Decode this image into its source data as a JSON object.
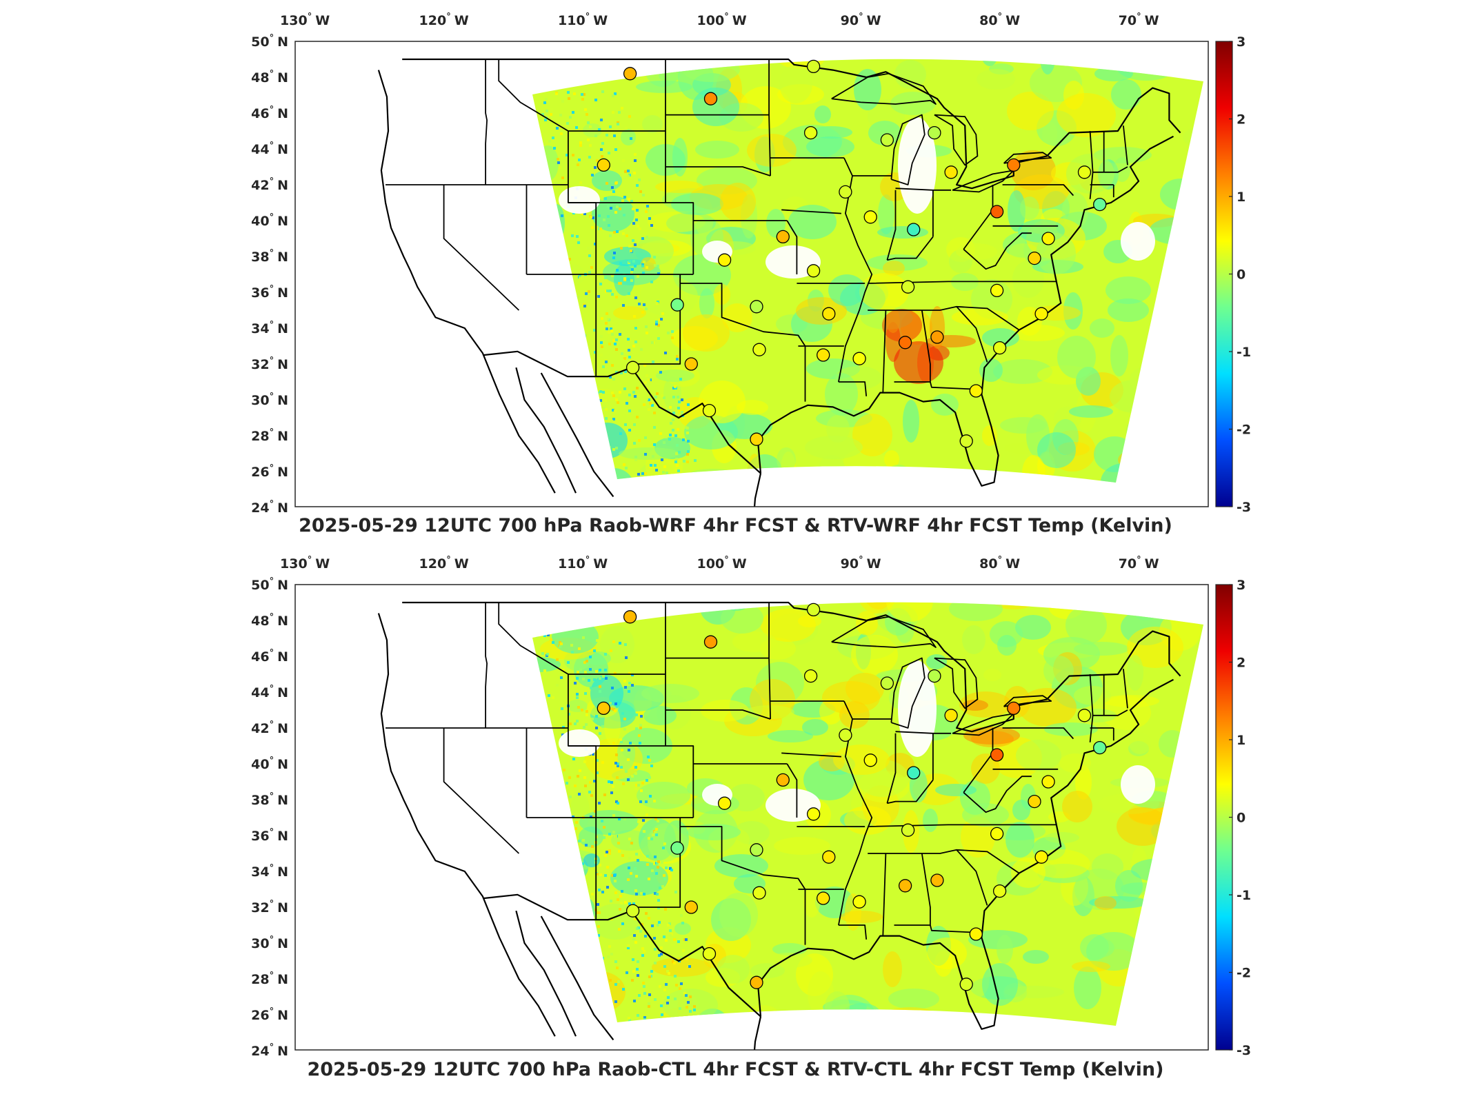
{
  "colors": {
    "colormap": [
      "#00008f",
      "#0050ff",
      "#00dfff",
      "#6fff8f",
      "#ffff00",
      "#ff8000",
      "#ef0000",
      "#800000"
    ],
    "frame": "#262626",
    "coastline": "#000000"
  },
  "longitude_ticks": [
    {
      "deg": "130",
      "hemi": "W"
    },
    {
      "deg": "120",
      "hemi": "W"
    },
    {
      "deg": "110",
      "hemi": "W"
    },
    {
      "deg": "100",
      "hemi": "W"
    },
    {
      "deg": "90",
      "hemi": "W"
    },
    {
      "deg": "80",
      "hemi": "W"
    },
    {
      "deg": "70",
      "hemi": "W"
    }
  ],
  "latitude_ticks": [
    {
      "deg": "50",
      "hemi": "N"
    },
    {
      "deg": "48",
      "hemi": "N"
    },
    {
      "deg": "46",
      "hemi": "N"
    },
    {
      "deg": "44",
      "hemi": "N"
    },
    {
      "deg": "42",
      "hemi": "N"
    },
    {
      "deg": "40",
      "hemi": "N"
    },
    {
      "deg": "38",
      "hemi": "N"
    },
    {
      "deg": "36",
      "hemi": "N"
    },
    {
      "deg": "34",
      "hemi": "N"
    },
    {
      "deg": "32",
      "hemi": "N"
    },
    {
      "deg": "30",
      "hemi": "N"
    },
    {
      "deg": "28",
      "hemi": "N"
    },
    {
      "deg": "26",
      "hemi": "N"
    },
    {
      "deg": "24",
      "hemi": "N"
    }
  ],
  "colorbar": {
    "min": -3,
    "max": 3,
    "ticks": [
      "3",
      "2",
      "1",
      "0",
      "-1",
      "-2",
      "-3"
    ]
  },
  "panels": [
    {
      "title": "2025-05-29 12UTC 700 hPa Raob-WRF 4hr FCST & RTV-WRF 4hr FCST Temp (Kelvin)",
      "stations": [
        {
          "lon": -106.6,
          "lat": 48.2,
          "value": 0.9
        },
        {
          "lon": -100.8,
          "lat": 46.8,
          "value": 1.2
        },
        {
          "lon": -93.4,
          "lat": 48.6,
          "value": 0.2
        },
        {
          "lon": -93.6,
          "lat": 44.9,
          "value": 0.3
        },
        {
          "lon": -108.5,
          "lat": 43.1,
          "value": 0.7
        },
        {
          "lon": -88.1,
          "lat": 44.5,
          "value": 0.1
        },
        {
          "lon": -84.7,
          "lat": 44.9,
          "value": 0.0
        },
        {
          "lon": -83.5,
          "lat": 42.7,
          "value": 0.6
        },
        {
          "lon": -79.0,
          "lat": 43.1,
          "value": 1.3
        },
        {
          "lon": -73.9,
          "lat": 42.7,
          "value": 0.3
        },
        {
          "lon": -91.1,
          "lat": 41.6,
          "value": 0.2
        },
        {
          "lon": -89.3,
          "lat": 40.2,
          "value": 0.4
        },
        {
          "lon": -86.2,
          "lat": 39.5,
          "value": -0.8
        },
        {
          "lon": -80.2,
          "lat": 40.5,
          "value": 1.5
        },
        {
          "lon": -72.8,
          "lat": 40.9,
          "value": -0.5
        },
        {
          "lon": -76.5,
          "lat": 39.0,
          "value": 0.5
        },
        {
          "lon": -77.5,
          "lat": 37.9,
          "value": 0.7
        },
        {
          "lon": -95.6,
          "lat": 39.1,
          "value": 0.9
        },
        {
          "lon": -99.8,
          "lat": 37.8,
          "value": 0.5
        },
        {
          "lon": -93.4,
          "lat": 37.2,
          "value": 0.3
        },
        {
          "lon": -86.6,
          "lat": 36.3,
          "value": 0.2
        },
        {
          "lon": -80.2,
          "lat": 36.1,
          "value": 0.4
        },
        {
          "lon": -103.2,
          "lat": 35.3,
          "value": -0.4
        },
        {
          "lon": -97.5,
          "lat": 35.2,
          "value": 0.0
        },
        {
          "lon": -92.3,
          "lat": 34.8,
          "value": 0.6
        },
        {
          "lon": -77.0,
          "lat": 34.8,
          "value": 0.5
        },
        {
          "lon": -86.8,
          "lat": 33.2,
          "value": 1.4
        },
        {
          "lon": -84.5,
          "lat": 33.5,
          "value": 1.1
        },
        {
          "lon": -97.3,
          "lat": 32.8,
          "value": 0.3
        },
        {
          "lon": -92.7,
          "lat": 32.5,
          "value": 0.6
        },
        {
          "lon": -90.1,
          "lat": 32.3,
          "value": 0.4
        },
        {
          "lon": -102.2,
          "lat": 32.0,
          "value": 0.8
        },
        {
          "lon": -106.4,
          "lat": 31.8,
          "value": 0.2
        },
        {
          "lon": -80.0,
          "lat": 32.9,
          "value": 0.3
        },
        {
          "lon": -81.7,
          "lat": 30.5,
          "value": 0.5
        },
        {
          "lon": -100.9,
          "lat": 29.4,
          "value": 0.3
        },
        {
          "lon": -97.5,
          "lat": 27.8,
          "value": 0.7
        },
        {
          "lon": -82.4,
          "lat": 27.7,
          "value": 0.2
        }
      ]
    },
    {
      "title": "2025-05-29 12UTC 700 hPa Raob-CTL 4hr FCST & RTV-CTL 4hr FCST Temp (Kelvin)",
      "stations": [
        {
          "lon": -106.6,
          "lat": 48.2,
          "value": 0.9
        },
        {
          "lon": -100.8,
          "lat": 46.8,
          "value": 1.1
        },
        {
          "lon": -93.4,
          "lat": 48.6,
          "value": 0.2
        },
        {
          "lon": -93.6,
          "lat": 44.9,
          "value": 0.3
        },
        {
          "lon": -108.5,
          "lat": 43.1,
          "value": 0.8
        },
        {
          "lon": -88.1,
          "lat": 44.5,
          "value": 0.1
        },
        {
          "lon": -84.7,
          "lat": 44.9,
          "value": 0.0
        },
        {
          "lon": -83.5,
          "lat": 42.7,
          "value": 0.6
        },
        {
          "lon": -79.0,
          "lat": 43.1,
          "value": 1.3
        },
        {
          "lon": -73.9,
          "lat": 42.7,
          "value": 0.3
        },
        {
          "lon": -91.1,
          "lat": 41.6,
          "value": 0.2
        },
        {
          "lon": -89.3,
          "lat": 40.2,
          "value": 0.4
        },
        {
          "lon": -86.2,
          "lat": 39.5,
          "value": -0.8
        },
        {
          "lon": -80.2,
          "lat": 40.5,
          "value": 1.5
        },
        {
          "lon": -72.8,
          "lat": 40.9,
          "value": -0.5
        },
        {
          "lon": -76.5,
          "lat": 39.0,
          "value": 0.5
        },
        {
          "lon": -77.5,
          "lat": 37.9,
          "value": 0.7
        },
        {
          "lon": -95.6,
          "lat": 39.1,
          "value": 0.9
        },
        {
          "lon": -99.8,
          "lat": 37.8,
          "value": 0.5
        },
        {
          "lon": -93.4,
          "lat": 37.2,
          "value": 0.4
        },
        {
          "lon": -86.6,
          "lat": 36.3,
          "value": 0.2
        },
        {
          "lon": -80.2,
          "lat": 36.1,
          "value": 0.4
        },
        {
          "lon": -103.2,
          "lat": 35.3,
          "value": -0.4
        },
        {
          "lon": -97.5,
          "lat": 35.2,
          "value": 0.0
        },
        {
          "lon": -92.3,
          "lat": 34.8,
          "value": 0.6
        },
        {
          "lon": -77.0,
          "lat": 34.8,
          "value": 0.5
        },
        {
          "lon": -86.8,
          "lat": 33.2,
          "value": 0.9
        },
        {
          "lon": -84.5,
          "lat": 33.5,
          "value": 0.9
        },
        {
          "lon": -97.3,
          "lat": 32.8,
          "value": 0.3
        },
        {
          "lon": -92.7,
          "lat": 32.5,
          "value": 0.6
        },
        {
          "lon": -90.1,
          "lat": 32.3,
          "value": 0.4
        },
        {
          "lon": -102.2,
          "lat": 32.0,
          "value": 0.8
        },
        {
          "lon": -106.4,
          "lat": 31.8,
          "value": 0.2
        },
        {
          "lon": -80.0,
          "lat": 32.9,
          "value": 0.3
        },
        {
          "lon": -81.7,
          "lat": 30.5,
          "value": 0.5
        },
        {
          "lon": -100.9,
          "lat": 29.4,
          "value": 0.3
        },
        {
          "lon": -97.5,
          "lat": 27.8,
          "value": 0.9
        },
        {
          "lon": -82.4,
          "lat": 27.7,
          "value": 0.2
        }
      ]
    }
  ]
}
